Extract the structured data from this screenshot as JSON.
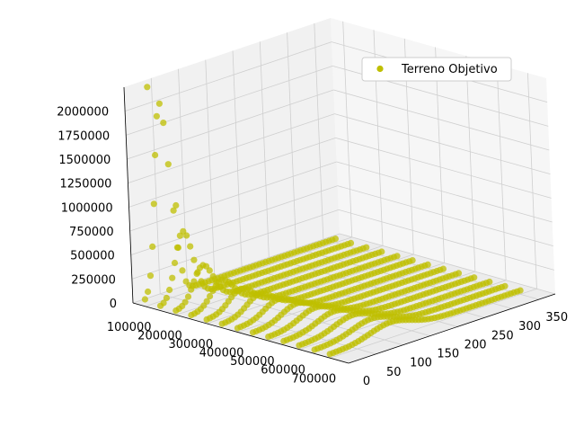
{
  "chart_data": {
    "type": "scatter",
    "projection": "3d",
    "legend": {
      "label": "Terreno Objetivo",
      "placement": "top-right"
    },
    "series_color": "#bfbf00",
    "x_ticks": [
      "100000",
      "200000",
      "300000",
      "400000",
      "500000",
      "600000",
      "700000"
    ],
    "y_ticks": [
      "0",
      "50",
      "100",
      "150",
      "200",
      "250",
      "300",
      "350"
    ],
    "z_ticks": [
      "0",
      "250000",
      "500000",
      "750000",
      "1000000",
      "1250000",
      "1500000",
      "1750000",
      "2000000"
    ],
    "xlim": [
      60000,
      760000
    ],
    "ylim": [
      0,
      380
    ],
    "zlim": [
      0,
      2250000
    ],
    "grid": true,
    "sweep_x": [
      100000,
      150000,
      200000,
      250000,
      300000,
      350000,
      400000,
      450000,
      500000,
      550000,
      600000,
      650000,
      700000
    ],
    "sweep_peak_z": [
      2000000,
      700000,
      380000,
      260000,
      200000,
      180000,
      160000,
      150000,
      140000,
      135000,
      130000,
      125000,
      120000
    ],
    "sweep_y_range": [
      0,
      350
    ],
    "outliers": [
      {
        "x": 100000,
        "y": 20,
        "z": 2250000
      },
      {
        "x": 160000,
        "y": 30,
        "z": 1050000
      }
    ]
  }
}
